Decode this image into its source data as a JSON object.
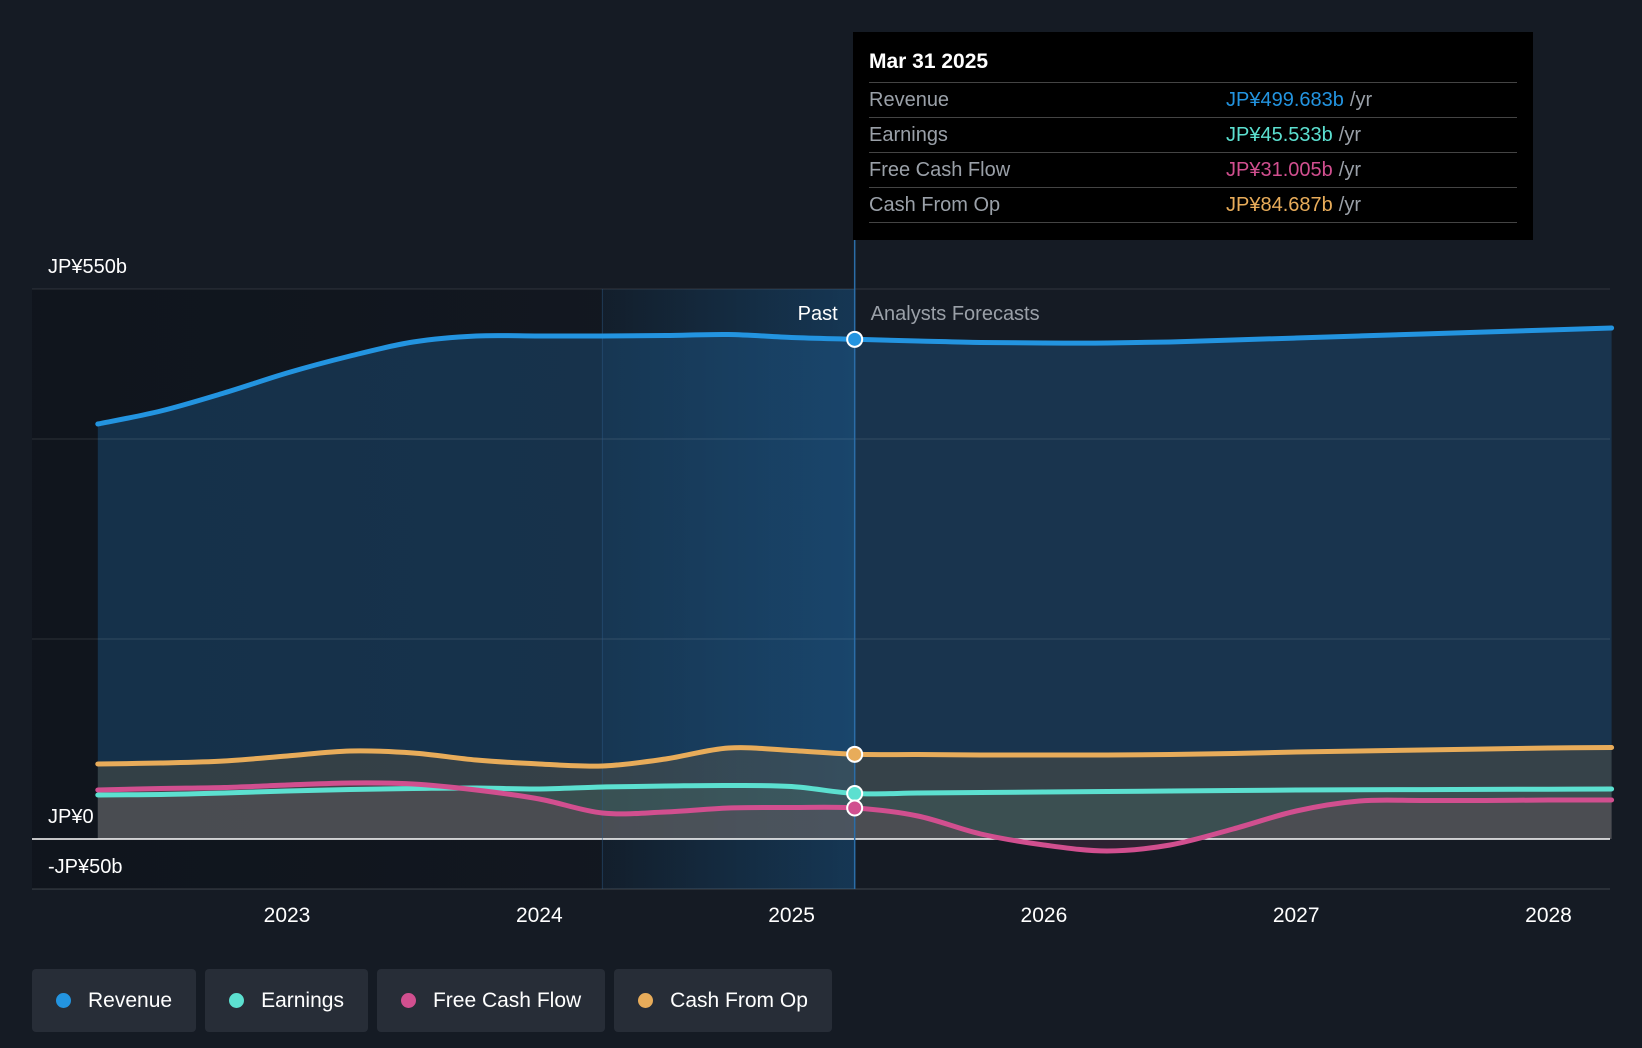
{
  "chart_data": {
    "type": "area",
    "y_axis": {
      "min": -50,
      "max": 550,
      "unit": "JP¥b",
      "labels": [
        "JP¥550b",
        "JP¥0",
        "-JP¥50b"
      ]
    },
    "x_axis": {
      "ticks": [
        "2023",
        "2024",
        "2025",
        "2026",
        "2027",
        "2028"
      ]
    },
    "divider": {
      "past_label": "Past",
      "forecast_label": "Analysts Forecasts",
      "x": 2025.25
    },
    "series": [
      {
        "name": "Revenue",
        "color": "#2394e0",
        "points": [
          [
            2022.25,
            415
          ],
          [
            2022.5,
            428
          ],
          [
            2022.75,
            446
          ],
          [
            2023,
            466
          ],
          [
            2023.25,
            483
          ],
          [
            2023.5,
            497
          ],
          [
            2023.75,
            503
          ],
          [
            2024,
            503
          ],
          [
            2024.25,
            503
          ],
          [
            2024.5,
            503.5
          ],
          [
            2024.75,
            504.5
          ],
          [
            2025,
            501.5
          ],
          [
            2025.25,
            499.683
          ],
          [
            2025.5,
            498
          ],
          [
            2025.75,
            496.5
          ],
          [
            2026,
            496
          ],
          [
            2026.25,
            496
          ],
          [
            2026.5,
            497
          ],
          [
            2026.75,
            499
          ],
          [
            2027,
            501
          ],
          [
            2027.25,
            503
          ],
          [
            2027.5,
            505
          ],
          [
            2027.75,
            507
          ],
          [
            2028,
            509
          ],
          [
            2028.25,
            511
          ]
        ]
      },
      {
        "name": "Earnings",
        "color": "#5ce0d0",
        "points": [
          [
            2022.25,
            44
          ],
          [
            2022.5,
            44.5
          ],
          [
            2022.75,
            46
          ],
          [
            2023,
            48
          ],
          [
            2023.25,
            49.5
          ],
          [
            2023.5,
            50.5
          ],
          [
            2023.75,
            51
          ],
          [
            2024,
            50
          ],
          [
            2024.25,
            52
          ],
          [
            2024.5,
            53
          ],
          [
            2024.75,
            53.5
          ],
          [
            2025,
            52.5
          ],
          [
            2025.25,
            45.533
          ],
          [
            2025.5,
            46
          ],
          [
            2025.75,
            46.5
          ],
          [
            2026,
            47
          ],
          [
            2026.25,
            47.5
          ],
          [
            2026.5,
            48
          ],
          [
            2026.75,
            48.5
          ],
          [
            2027,
            49
          ],
          [
            2027.25,
            49.2
          ],
          [
            2027.5,
            49.4
          ],
          [
            2027.75,
            49.6
          ],
          [
            2028,
            49.8
          ],
          [
            2028.25,
            50
          ]
        ]
      },
      {
        "name": "Free Cash Flow",
        "color": "#d14f8f",
        "points": [
          [
            2022.25,
            49
          ],
          [
            2022.5,
            50.5
          ],
          [
            2022.75,
            51.5
          ],
          [
            2023,
            54
          ],
          [
            2023.25,
            56
          ],
          [
            2023.5,
            55
          ],
          [
            2023.75,
            49
          ],
          [
            2024,
            40
          ],
          [
            2024.25,
            26
          ],
          [
            2024.5,
            27
          ],
          [
            2024.75,
            31
          ],
          [
            2025,
            31.5
          ],
          [
            2025.25,
            31.005
          ],
          [
            2025.5,
            23
          ],
          [
            2025.75,
            5
          ],
          [
            2026,
            -6
          ],
          [
            2026.25,
            -12
          ],
          [
            2026.5,
            -6
          ],
          [
            2026.75,
            10
          ],
          [
            2027,
            28
          ],
          [
            2027.25,
            38
          ],
          [
            2027.5,
            38.5
          ],
          [
            2027.75,
            38.5
          ],
          [
            2028,
            39
          ],
          [
            2028.25,
            39
          ]
        ]
      },
      {
        "name": "Cash From Op",
        "color": "#e8ac5a",
        "points": [
          [
            2022.25,
            75
          ],
          [
            2022.5,
            76
          ],
          [
            2022.75,
            78
          ],
          [
            2023,
            83
          ],
          [
            2023.25,
            88
          ],
          [
            2023.5,
            86
          ],
          [
            2023.75,
            79
          ],
          [
            2024,
            75
          ],
          [
            2024.25,
            73
          ],
          [
            2024.5,
            80
          ],
          [
            2024.75,
            91
          ],
          [
            2025,
            88.5
          ],
          [
            2025.25,
            84.687
          ],
          [
            2025.5,
            84.5
          ],
          [
            2025.75,
            84
          ],
          [
            2026,
            84
          ],
          [
            2026.25,
            84
          ],
          [
            2026.5,
            84.5
          ],
          [
            2026.75,
            85.5
          ],
          [
            2027,
            87
          ],
          [
            2027.25,
            88
          ],
          [
            2027.5,
            89
          ],
          [
            2027.75,
            90
          ],
          [
            2028,
            91
          ],
          [
            2028.25,
            91.5
          ]
        ]
      }
    ],
    "highlight": {
      "x": 2025.25,
      "values": [
        499.683,
        45.533,
        31.005,
        84.687
      ]
    }
  },
  "tooltip": {
    "date": "Mar 31 2025",
    "rows": [
      {
        "label": "Revenue",
        "value": "JP¥499.683b",
        "unit": "/yr",
        "color": "#2394e0"
      },
      {
        "label": "Earnings",
        "value": "JP¥45.533b",
        "unit": "/yr",
        "color": "#5ce0d0"
      },
      {
        "label": "Free Cash Flow",
        "value": "JP¥31.005b",
        "unit": "/yr",
        "color": "#d14f8f"
      },
      {
        "label": "Cash From Op",
        "value": "JP¥84.687b",
        "unit": "/yr",
        "color": "#e8ac5a"
      }
    ]
  },
  "legend": [
    {
      "label": "Revenue",
      "color": "#2394e0"
    },
    {
      "label": "Earnings",
      "color": "#5ce0d0"
    },
    {
      "label": "Free Cash Flow",
      "color": "#d14f8f"
    },
    {
      "label": "Cash From Op",
      "color": "#e8ac5a"
    }
  ]
}
